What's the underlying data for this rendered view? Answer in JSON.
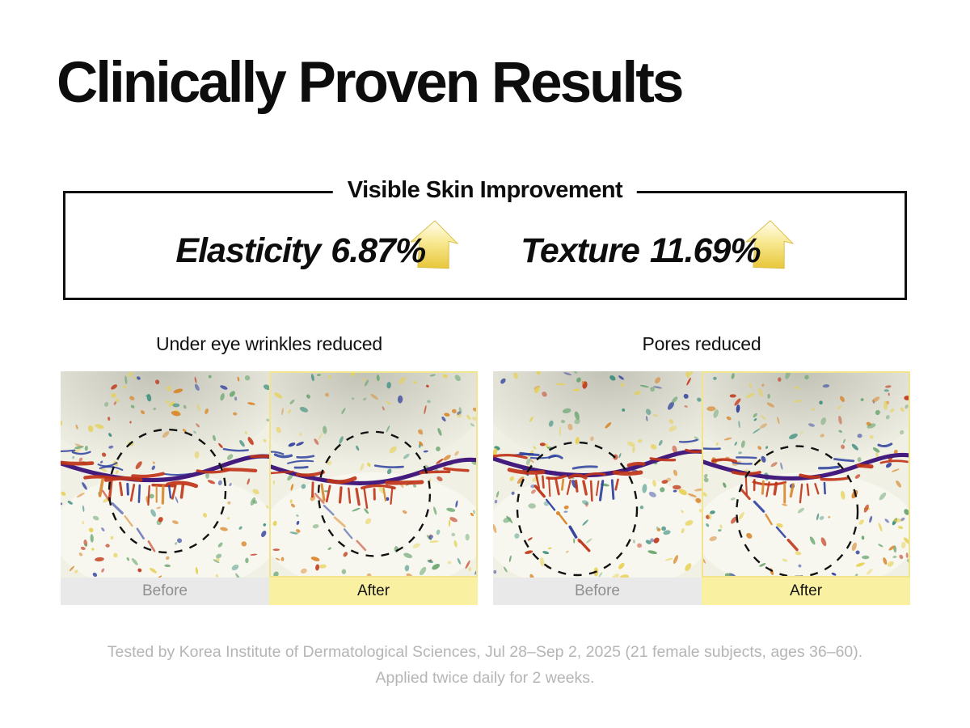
{
  "page_title": "Clinically Proven Results",
  "improvement_box": {
    "heading": "Visible Skin Improvement",
    "metrics": [
      {
        "label": "Elasticity",
        "value": "6.87%",
        "icon": "gold-up-arrow-icon"
      },
      {
        "label": "Texture",
        "value": "11.69%",
        "icon": "gold-up-arrow-icon"
      }
    ]
  },
  "comparisons": [
    {
      "caption": "Under eye wrinkles reduced",
      "before_label": "Before",
      "after_label": "After"
    },
    {
      "caption": "Pores reduced",
      "before_label": "Before",
      "after_label": "After"
    }
  ],
  "footnote": {
    "lines": [
      "Tested by Korea Institute of Dermatological Sciences, Jul 28–Sep 2, 2025 (21 female subjects, ages 36–60).",
      "Applied twice daily for 2 weeks."
    ]
  },
  "colors": {
    "title_black": "#0d0d0d",
    "gold_arrow_light": "#fffdf0",
    "gold_arrow_mid": "#f8e992",
    "gold_arrow_dark": "#e8c73c",
    "after_bar_bg": "#f9f1a1",
    "before_bar_bg": "#e9e9e9",
    "before_text": "#8f8f8f",
    "footnote_gray": "#b5b5b5",
    "image_bg": "#f1f0e5",
    "wrinkle_purple": "#431c7e",
    "wrinkle_red": "#c03418",
    "wrinkle_blue": "#2c3f9e",
    "speck_palette": [
      "#6aa56f",
      "#3d8f7f",
      "#e7d051",
      "#d9872c",
      "#c23a1c",
      "#2f3f9d"
    ]
  }
}
